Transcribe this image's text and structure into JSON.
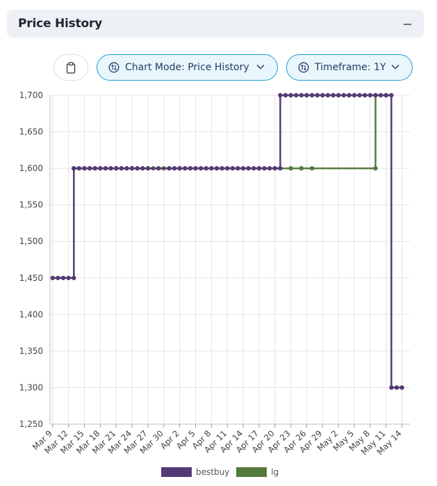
{
  "panel": {
    "title": "Price History",
    "collapse_icon": "minus-icon"
  },
  "toolbar": {
    "clipboard_icon": "clipboard-icon",
    "chart_mode_label": "Chart Mode: Price History",
    "timeframe_label": "Timeframe: 1Y",
    "mode_icon": "swap-vertical-circle-icon",
    "dropdown_icon": "chevron-down-icon"
  },
  "chart_data": {
    "type": "line",
    "step": true,
    "grid": true,
    "legend_placement": "bottom",
    "ylim": [
      1250,
      1700
    ],
    "y_ticks": [
      "1,250",
      "1,300",
      "1,350",
      "1,400",
      "1,450",
      "1,500",
      "1,550",
      "1,600",
      "1,650",
      "1,700"
    ],
    "x_ticks": [
      "Mar 9",
      "Mar 12",
      "Mar 15",
      "Mar 18",
      "Mar 21",
      "Mar 24",
      "Mar 27",
      "Mar 30",
      "Apr 2",
      "Apr 5",
      "Apr 8",
      "Apr 11",
      "Apr 14",
      "Apr 17",
      "Apr 20",
      "Apr 23",
      "Apr 26",
      "Apr 29",
      "May 2",
      "May 5",
      "May 8",
      "May 11",
      "May 14"
    ],
    "series": [
      {
        "name": "bestbuy",
        "color": "#553a75",
        "points": [
          [
            "Mar 9",
            1450
          ],
          [
            "Mar 10",
            1450
          ],
          [
            "Mar 11",
            1450
          ],
          [
            "Mar 12",
            1450
          ],
          [
            "Mar 13",
            1450
          ],
          [
            "Mar 13",
            1600
          ],
          [
            "Mar 14",
            1600
          ],
          [
            "Mar 15",
            1600
          ],
          [
            "Mar 16",
            1600
          ],
          [
            "Mar 17",
            1600
          ],
          [
            "Mar 18",
            1600
          ],
          [
            "Mar 19",
            1600
          ],
          [
            "Mar 20",
            1600
          ],
          [
            "Mar 21",
            1600
          ],
          [
            "Mar 22",
            1600
          ],
          [
            "Mar 23",
            1600
          ],
          [
            "Mar 24",
            1600
          ],
          [
            "Mar 25",
            1600
          ],
          [
            "Mar 26",
            1600
          ],
          [
            "Mar 27",
            1600
          ],
          [
            "Mar 29",
            1600
          ],
          [
            "Mar 31",
            1600
          ],
          [
            "Apr 1",
            1600
          ],
          [
            "Apr 2",
            1600
          ],
          [
            "Apr 3",
            1600
          ],
          [
            "Apr 4",
            1600
          ],
          [
            "Apr 5",
            1600
          ],
          [
            "Apr 6",
            1600
          ],
          [
            "Apr 7",
            1600
          ],
          [
            "Apr 8",
            1600
          ],
          [
            "Apr 9",
            1600
          ],
          [
            "Apr 10",
            1600
          ],
          [
            "Apr 11",
            1600
          ],
          [
            "Apr 12",
            1600
          ],
          [
            "Apr 13",
            1600
          ],
          [
            "Apr 14",
            1600
          ],
          [
            "Apr 15",
            1600
          ],
          [
            "Apr 16",
            1600
          ],
          [
            "Apr 17",
            1600
          ],
          [
            "Apr 18",
            1600
          ],
          [
            "Apr 19",
            1600
          ],
          [
            "Apr 20",
            1600
          ],
          [
            "Apr 21",
            1600
          ],
          [
            "Apr 21",
            1700
          ],
          [
            "Apr 22",
            1700
          ],
          [
            "Apr 23",
            1700
          ],
          [
            "Apr 24",
            1700
          ],
          [
            "Apr 25",
            1700
          ],
          [
            "Apr 26",
            1700
          ],
          [
            "Apr 27",
            1700
          ],
          [
            "Apr 28",
            1700
          ],
          [
            "Apr 29",
            1700
          ],
          [
            "Apr 30",
            1700
          ],
          [
            "May 1",
            1700
          ],
          [
            "May 2",
            1700
          ],
          [
            "May 3",
            1700
          ],
          [
            "May 4",
            1700
          ],
          [
            "May 5",
            1700
          ],
          [
            "May 6",
            1700
          ],
          [
            "May 7",
            1700
          ],
          [
            "May 8",
            1700
          ],
          [
            "May 9",
            1700
          ],
          [
            "May 10",
            1700
          ],
          [
            "May 11",
            1700
          ],
          [
            "May 12",
            1700
          ],
          [
            "May 12",
            1300
          ],
          [
            "May 13",
            1300
          ],
          [
            "May 14",
            1300
          ]
        ]
      },
      {
        "name": "lg",
        "color": "#547a3e",
        "points": [
          [
            "Mar 13",
            1600
          ],
          [
            "Mar 17",
            1600
          ],
          [
            "Mar 21",
            1600
          ],
          [
            "Mar 24",
            1600
          ],
          [
            "Mar 28",
            1600
          ],
          [
            "Mar 30",
            1600
          ],
          [
            "Apr 2",
            1600
          ],
          [
            "Apr 4",
            1600
          ],
          [
            "Apr 17",
            1600
          ],
          [
            "Apr 23",
            1600
          ],
          [
            "Apr 25",
            1600
          ],
          [
            "Apr 27",
            1600
          ],
          [
            "May 9",
            1600
          ],
          [
            "May 9",
            1700
          ],
          [
            "May 11",
            1700
          ]
        ]
      }
    ]
  }
}
